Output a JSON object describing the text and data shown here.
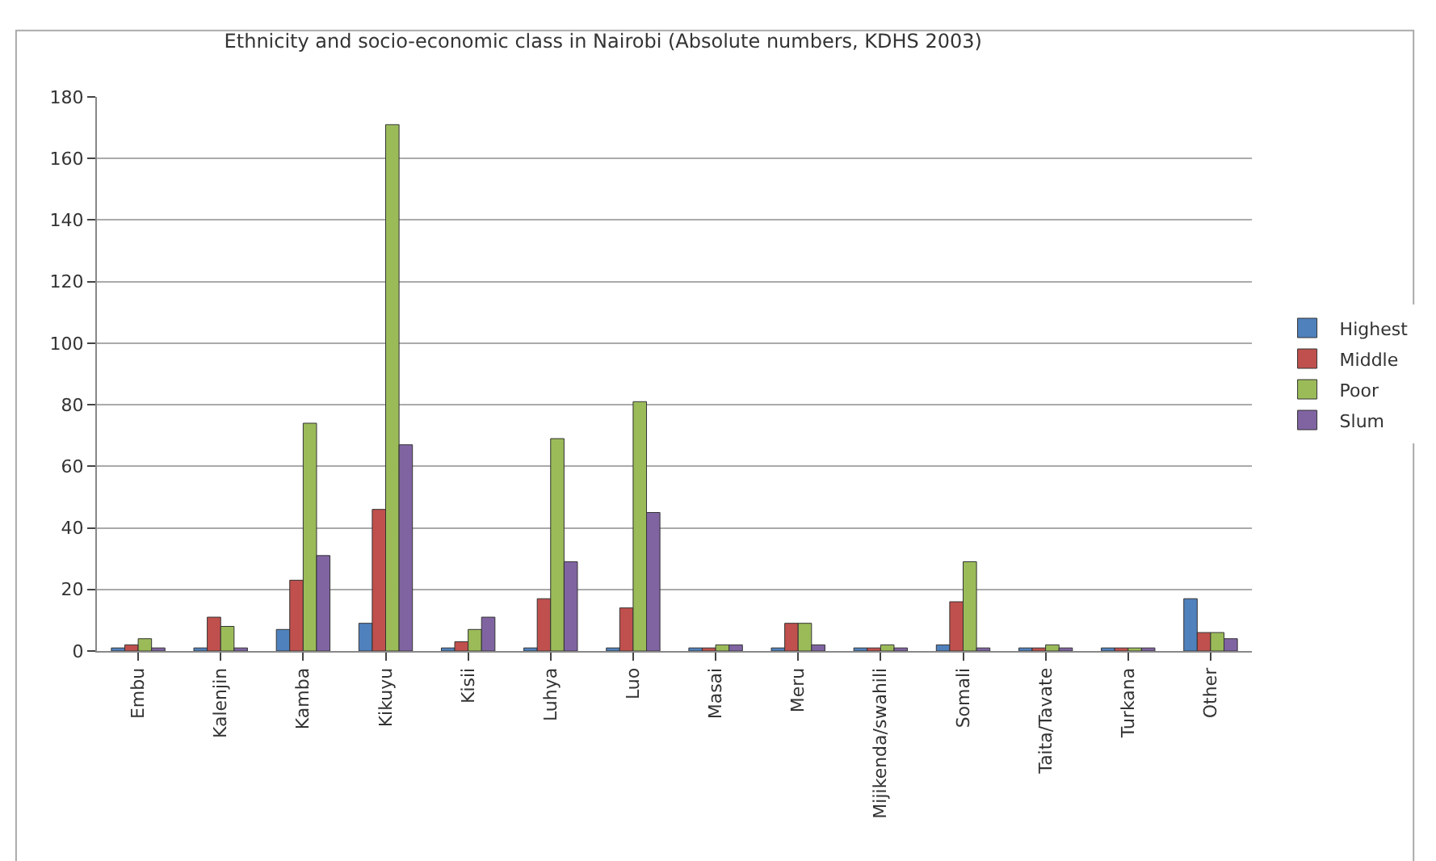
{
  "chart_data": {
    "type": "bar",
    "title": "Ethnicity and socio-economic class in Nairobi (Absolute numbers, KDHS 2003)",
    "categories": [
      "Embu",
      "Kalenjin",
      "Kamba",
      "Kikuyu",
      "Kisii",
      "Luhya",
      "Luo",
      "Masai",
      "Meru",
      "Mijikenda/swahili",
      "Somali",
      "Taita/Tavate",
      "Turkana",
      "Other"
    ],
    "series": [
      {
        "name": "Highest",
        "color": "#4f81bd",
        "values": [
          1,
          1,
          7,
          9,
          1,
          1,
          1,
          1,
          1,
          1,
          2,
          1,
          1,
          17
        ]
      },
      {
        "name": "Middle",
        "color": "#c0504d",
        "values": [
          2,
          11,
          23,
          46,
          3,
          17,
          14,
          1,
          9,
          1,
          16,
          1,
          1,
          6
        ]
      },
      {
        "name": "Poor",
        "color": "#9bbb59",
        "values": [
          4,
          8,
          74,
          171,
          7,
          69,
          81,
          2,
          9,
          2,
          29,
          2,
          1,
          6
        ]
      },
      {
        "name": "Slum",
        "color": "#8064a2",
        "values": [
          1,
          1,
          31,
          67,
          11,
          29,
          45,
          2,
          2,
          1,
          1,
          1,
          1,
          4
        ]
      }
    ],
    "ylim": [
      0,
      180
    ],
    "yticks": [
      0,
      20,
      40,
      60,
      80,
      100,
      120,
      140,
      160,
      180
    ],
    "grid": "y",
    "legend": "right"
  }
}
